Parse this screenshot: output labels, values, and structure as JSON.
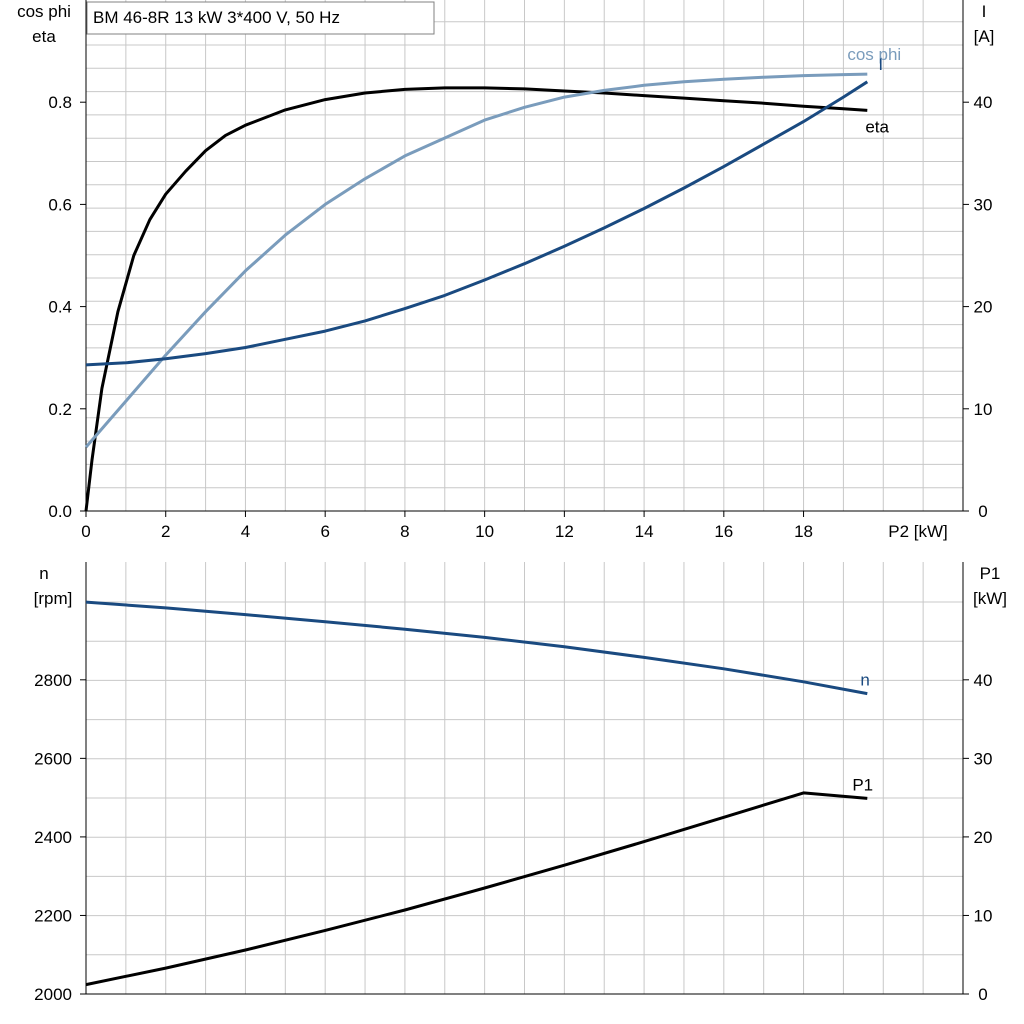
{
  "title": "BM 46-8R   13 kW   3*400 V, 50 Hz",
  "chart_data": [
    {
      "type": "line",
      "xlabel": "P2 [kW]",
      "xlim": [
        0,
        22
      ],
      "xticks": [
        0,
        2,
        4,
        6,
        8,
        10,
        12,
        14,
        16,
        18
      ],
      "ylabel_left": [
        "cos phi",
        "eta"
      ],
      "ylim_left": [
        0,
        1.0
      ],
      "yticks_left": [
        0.0,
        0.2,
        0.4,
        0.6,
        0.8
      ],
      "ylabel_right": [
        "I",
        "[A]"
      ],
      "ylim_right": [
        0,
        50
      ],
      "yticks_right": [
        0,
        10,
        20,
        30,
        40
      ],
      "grid": true,
      "series": [
        {
          "name": "eta",
          "axis": "left",
          "color": "#000000",
          "x": [
            0,
            0.15,
            0.4,
            0.8,
            1.2,
            1.6,
            2,
            2.5,
            3,
            3.5,
            4,
            5,
            6,
            7,
            8,
            9,
            10,
            11,
            12,
            13,
            14,
            15,
            16,
            17,
            18,
            19,
            19.6
          ],
          "y": [
            0.0,
            0.1,
            0.24,
            0.39,
            0.5,
            0.57,
            0.62,
            0.665,
            0.705,
            0.735,
            0.755,
            0.785,
            0.805,
            0.818,
            0.825,
            0.828,
            0.828,
            0.826,
            0.822,
            0.818,
            0.813,
            0.808,
            0.803,
            0.798,
            0.792,
            0.787,
            0.784
          ]
        },
        {
          "name": "cos phi",
          "axis": "left",
          "color": "#7a9cbc",
          "x": [
            0,
            1,
            2,
            3,
            4,
            5,
            6,
            7,
            8,
            9,
            10,
            11,
            12,
            13,
            14,
            15,
            16,
            17,
            18,
            19,
            19.6
          ],
          "y": [
            0.125,
            0.215,
            0.305,
            0.39,
            0.47,
            0.54,
            0.6,
            0.65,
            0.695,
            0.73,
            0.765,
            0.79,
            0.81,
            0.823,
            0.833,
            0.84,
            0.845,
            0.849,
            0.852,
            0.854,
            0.855
          ]
        },
        {
          "name": "I",
          "axis": "right",
          "color": "#1a4a80",
          "x": [
            0,
            1,
            2,
            3,
            4,
            5,
            6,
            7,
            8,
            9,
            10,
            11,
            12,
            13,
            14,
            15,
            16,
            17,
            18,
            19,
            19.6
          ],
          "y": [
            14.3,
            14.5,
            14.9,
            15.4,
            16.0,
            16.8,
            17.6,
            18.6,
            19.8,
            21.1,
            22.6,
            24.2,
            25.9,
            27.7,
            29.6,
            31.6,
            33.7,
            35.9,
            38.1,
            40.5,
            42.0
          ]
        }
      ]
    },
    {
      "type": "line",
      "xlim": [
        0,
        22
      ],
      "ylabel_left": [
        "n",
        "[rpm]"
      ],
      "ylim_left": [
        2000,
        3100
      ],
      "yticks_left": [
        2000,
        2200,
        2400,
        2600,
        2800
      ],
      "ylabel_right": [
        "P1",
        "[kW]"
      ],
      "ylim_right": [
        0,
        55
      ],
      "yticks_right": [
        0,
        10,
        20,
        30,
        40
      ],
      "grid": true,
      "series": [
        {
          "name": "n",
          "axis": "left",
          "color": "#1a4a80",
          "x": [
            0,
            2,
            4,
            6,
            8,
            10,
            12,
            14,
            16,
            18,
            19.6
          ],
          "y": [
            2998,
            2983,
            2966,
            2948,
            2929,
            2908,
            2884,
            2857,
            2828,
            2795,
            2765
          ]
        },
        {
          "name": "P1",
          "axis": "right",
          "color": "#000000",
          "x": [
            0,
            2,
            4,
            6,
            8,
            10,
            12,
            14,
            16,
            18,
            19.6
          ],
          "y": [
            1.2,
            3.3,
            5.6,
            8.1,
            10.7,
            13.5,
            16.4,
            19.4,
            22.5,
            25.6,
            24.9
          ]
        }
      ]
    }
  ]
}
